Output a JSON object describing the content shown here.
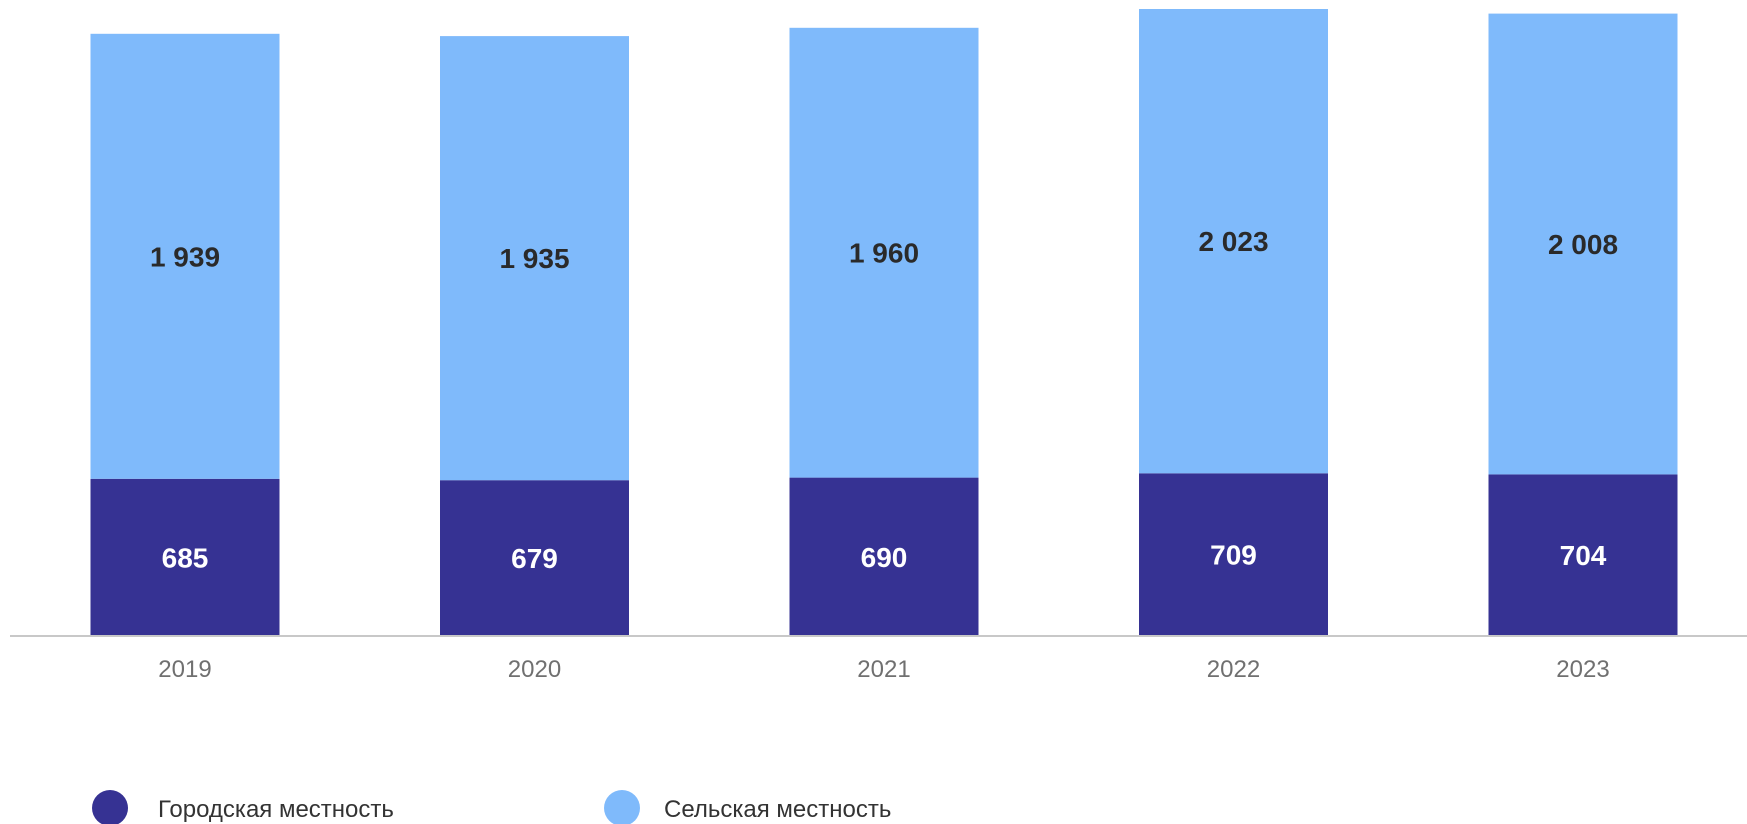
{
  "chart_data": {
    "type": "bar",
    "stacked": true,
    "categories": [
      "2019",
      "2020",
      "2021",
      "2022",
      "2023"
    ],
    "category_labels": [
      "2019",
      "2020",
      "2021",
      "2022",
      "2023"
    ],
    "series": [
      {
        "name": "Городская местность",
        "values": [
          685,
          679,
          690,
          709,
          704
        ],
        "value_labels": [
          "685",
          "679",
          "690",
          "709",
          "704"
        ],
        "color": "#363293",
        "label_color": "#ffffff"
      },
      {
        "name": "Сельская местность",
        "values": [
          1939,
          1935,
          1960,
          2023,
          2008
        ],
        "value_labels": [
          "1 939",
          "1 935",
          "1 960",
          "2 023",
          "2 008"
        ],
        "color": "#7fbafb",
        "label_color": "#2a2a2a"
      }
    ],
    "ylim": [
      0,
      2732
    ],
    "grid": false,
    "legend_position": "bottom-left",
    "axis_color": "#c8c8c8",
    "tick_color": "#707070"
  }
}
